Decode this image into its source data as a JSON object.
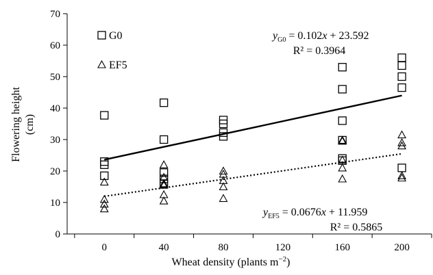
{
  "chart_data": {
    "type": "scatter",
    "xlabel": {
      "prefix": "Wheat density (plants m",
      "sup": "−2",
      "suffix": ")"
    },
    "ylabel": {
      "line1": "Flowering height",
      "line2": "(cm)"
    },
    "xlim": [
      -25,
      220
    ],
    "ylim": [
      0,
      70
    ],
    "x_ticks": [
      "0",
      "40",
      "80",
      "120",
      "160",
      "200"
    ],
    "x_tick_values": [
      0,
      40,
      80,
      120,
      160,
      200
    ],
    "y_ticks": [
      "0",
      "10",
      "20",
      "30",
      "40",
      "50",
      "60",
      "70"
    ],
    "y_tick_values": [
      0,
      10,
      20,
      30,
      40,
      50,
      60,
      70
    ],
    "legend_position": "top-left",
    "series": [
      {
        "name": "G0",
        "marker": "square",
        "line_style": "solid",
        "points": [
          [
            0,
            37.7
          ],
          [
            0,
            23
          ],
          [
            0,
            22
          ],
          [
            0,
            18.5
          ],
          [
            40,
            41.7
          ],
          [
            40,
            30
          ],
          [
            40,
            19.5
          ],
          [
            40,
            17.5
          ],
          [
            40,
            16
          ],
          [
            80,
            36.2
          ],
          [
            80,
            35
          ],
          [
            80,
            32.2
          ],
          [
            80,
            31
          ],
          [
            160,
            53
          ],
          [
            160,
            46
          ],
          [
            160,
            36
          ],
          [
            160,
            29.8
          ],
          [
            160,
            24
          ],
          [
            160,
            23.3
          ],
          [
            200,
            56
          ],
          [
            200,
            53.5
          ],
          [
            200,
            50
          ],
          [
            200,
            46.5
          ],
          [
            200,
            21
          ]
        ],
        "trend": {
          "slope": 0.102,
          "intercept": 23.592,
          "x_range": [
            0,
            200
          ],
          "equation": {
            "y": "y",
            "sub": "G0",
            "rhs": " = 0.102",
            "x": "x",
            "tail": " + 23.592"
          },
          "r2": "R² = 0.3964"
        }
      },
      {
        "name": "EF5",
        "marker": "triangle",
        "line_style": "dotted",
        "points": [
          [
            0,
            16.5
          ],
          [
            0,
            11
          ],
          [
            0,
            9.5
          ],
          [
            0,
            8
          ],
          [
            40,
            22
          ],
          [
            40,
            18
          ],
          [
            40,
            16
          ],
          [
            40,
            15.5
          ],
          [
            40,
            12.5
          ],
          [
            40,
            10.5
          ],
          [
            80,
            20
          ],
          [
            80,
            19
          ],
          [
            80,
            17
          ],
          [
            80,
            15
          ],
          [
            80,
            11.3
          ],
          [
            160,
            29.8
          ],
          [
            160,
            29.5
          ],
          [
            160,
            23.5
          ],
          [
            160,
            21
          ],
          [
            160,
            17.5
          ],
          [
            200,
            31.5
          ],
          [
            200,
            29
          ],
          [
            200,
            28
          ],
          [
            200,
            18.5
          ],
          [
            200,
            17.8
          ]
        ],
        "trend": {
          "slope": 0.0676,
          "intercept": 11.959,
          "x_range": [
            0,
            200
          ],
          "equation": {
            "y": "y",
            "sub": "EF5",
            "rhs": " = 0.0676",
            "x": "x",
            "tail": " + 11.959"
          },
          "r2": "R² = 0.5865"
        }
      }
    ]
  }
}
